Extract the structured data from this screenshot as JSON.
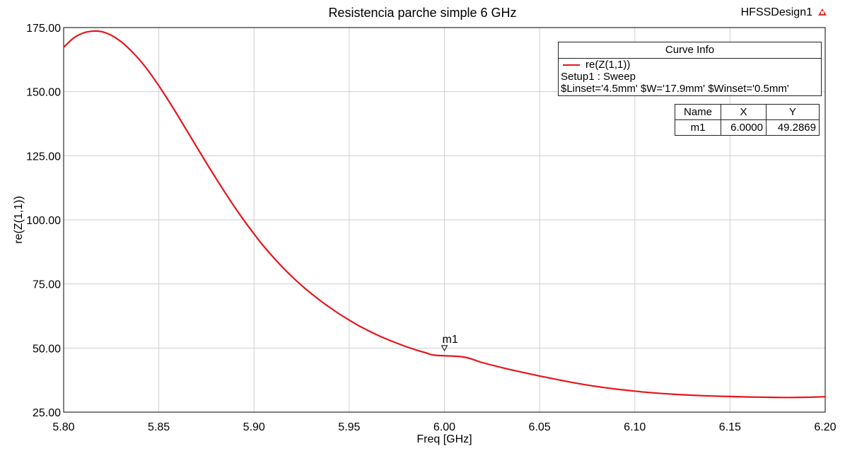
{
  "header": {
    "title": "Resistencia parche simple 6 GHz",
    "design": "HFSSDesign1"
  },
  "legend": {
    "title": "Curve Info",
    "trace_name": "re(Z(1,1))",
    "setup": "Setup1 : Sweep",
    "params": "$Linset='4.5mm' $W='17.9mm' $Winset='0.5mm'"
  },
  "marker_table": {
    "headers": [
      "Name",
      "X",
      "Y"
    ],
    "rows": [
      [
        "m1",
        "6.0000",
        "49.2869"
      ]
    ]
  },
  "colors": {
    "curve": "#e8141b",
    "grid": "#cfcfcf",
    "marker": "#000000"
  },
  "chart_data": {
    "type": "line",
    "title": "Resistencia parche simple 6 GHz",
    "xlabel": "Freq [GHz]",
    "ylabel": "re(Z(1,1))",
    "xlim": [
      5.8,
      6.2
    ],
    "ylim": [
      25,
      175
    ],
    "x_ticks": [
      "5.80",
      "5.85",
      "5.90",
      "5.95",
      "6.00",
      "6.05",
      "6.10",
      "6.15",
      "6.20"
    ],
    "y_ticks": [
      "25.00",
      "50.00",
      "75.00",
      "100.00",
      "125.00",
      "150.00",
      "175.00"
    ],
    "grid": true,
    "series": [
      {
        "name": "re(Z(1,1))",
        "x": [
          5.8,
          5.805,
          5.81,
          5.815,
          5.82,
          5.825,
          5.83,
          5.835,
          5.84,
          5.845,
          5.85,
          5.855,
          5.86,
          5.865,
          5.87,
          5.875,
          5.88,
          5.885,
          5.89,
          5.895,
          5.9,
          5.905,
          5.91,
          5.915,
          5.92,
          5.925,
          5.93,
          5.935,
          5.94,
          5.945,
          5.95,
          5.955,
          5.96,
          5.965,
          5.97,
          5.975,
          5.98,
          5.985,
          5.99,
          5.995,
          6.0,
          6.01,
          6.02,
          6.03,
          6.04,
          6.05,
          6.06,
          6.07,
          6.08,
          6.09,
          6.1,
          6.11,
          6.12,
          6.13,
          6.14,
          6.15,
          6.16,
          6.17,
          6.18,
          6.19,
          6.2
        ],
        "y": [
          167.3,
          170.8,
          172.8,
          173.6,
          173.4,
          172.0,
          169.6,
          166.3,
          162.3,
          157.6,
          152.3,
          146.6,
          140.6,
          134.5,
          128.3,
          122.2,
          116.2,
          110.4,
          104.8,
          99.5,
          94.5,
          89.8,
          85.5,
          81.5,
          77.8,
          74.4,
          71.3,
          68.4,
          65.7,
          63.2,
          60.9,
          58.7,
          56.8,
          55.0,
          53.4,
          51.9,
          50.5,
          49.3,
          48.2,
          47.2,
          49.29,
          46.5,
          44.3,
          42.4,
          40.7,
          39.1,
          37.6,
          36.2,
          35.0,
          34.0,
          33.2,
          32.5,
          32.0,
          31.6,
          31.3,
          31.1,
          30.9,
          30.8,
          30.7,
          30.8,
          31.0
        ]
      }
    ],
    "markers": [
      {
        "name": "m1",
        "x": 6.0,
        "y": 49.2869
      }
    ]
  }
}
